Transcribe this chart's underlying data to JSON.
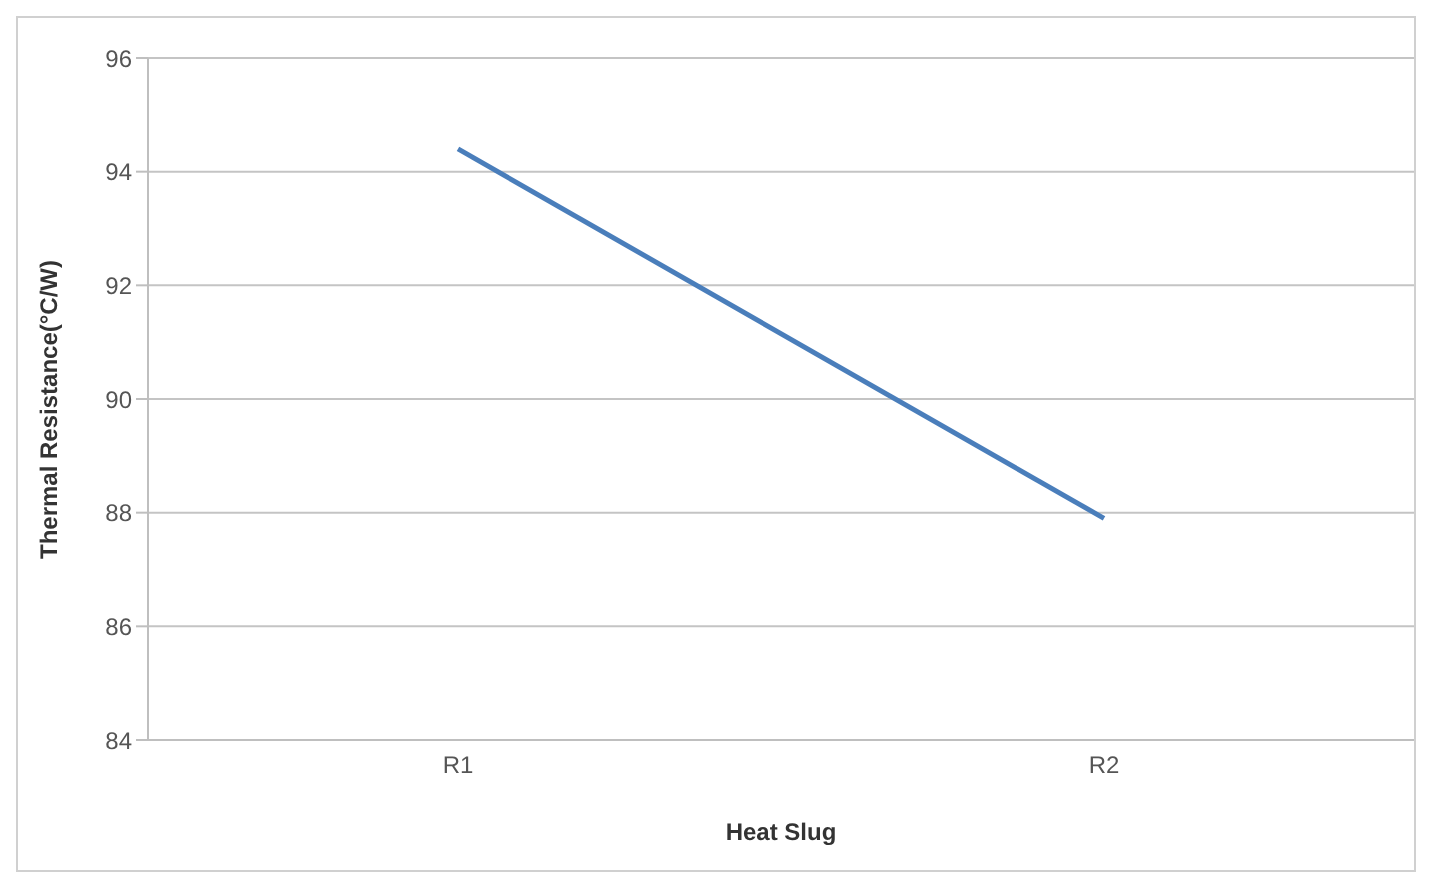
{
  "chart_data": {
    "type": "line",
    "xlabel": "Heat Slug",
    "ylabel": "Thermal Resistance(°C/W)",
    "categories": [
      "R1",
      "R2"
    ],
    "series": [
      {
        "color": "#4a7ebb",
        "values": [
          94.4,
          87.9
        ]
      }
    ],
    "ylim": [
      84,
      96
    ],
    "yticks": [
      84,
      86,
      88,
      90,
      92,
      94,
      96
    ],
    "grid": "y",
    "legend": false,
    "marker": "none",
    "line_style": "solid"
  }
}
